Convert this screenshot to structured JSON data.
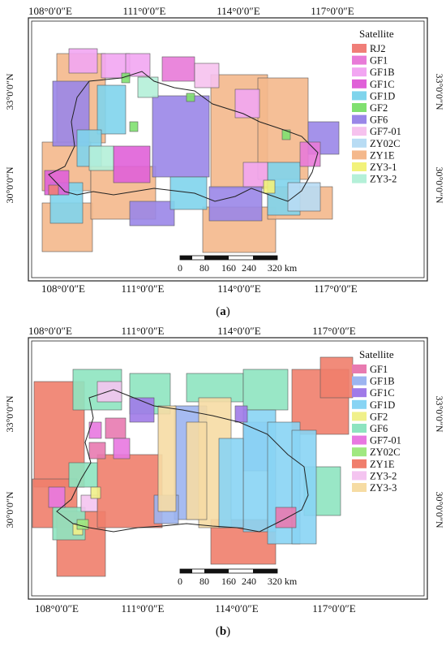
{
  "panels": [
    {
      "id": "a",
      "caption": "a",
      "legend_title": "Satellite",
      "legend": [
        {
          "name": "RJ2",
          "color": "#f07e78"
        },
        {
          "name": "GF1",
          "color": "#e87ad8"
        },
        {
          "name": "GF1B",
          "color": "#f2a6f2"
        },
        {
          "name": "GF1C",
          "color": "#e060d8"
        },
        {
          "name": "GF1D",
          "color": "#7fd4ec"
        },
        {
          "name": "GF2",
          "color": "#80e070"
        },
        {
          "name": "GF6",
          "color": "#9a86e8"
        },
        {
          "name": "GF7-01",
          "color": "#f6c2ee"
        },
        {
          "name": "ZY02C",
          "color": "#b8dcf4"
        },
        {
          "name": "ZY1E",
          "color": "#f4b88c"
        },
        {
          "name": "ZY3-1",
          "color": "#f2f27a"
        },
        {
          "name": "ZY3-2",
          "color": "#b4f0d8"
        }
      ],
      "x_ticks": [
        "108°0′0″E",
        "111°0′0″E",
        "114°0′0″E",
        "117°0′0″E"
      ],
      "y_ticks": [
        "33°0′0″N",
        "30°0′0″N"
      ],
      "scale_labels": [
        "0",
        "80",
        "160",
        "240",
        "320 km"
      ]
    },
    {
      "id": "b",
      "caption": "b",
      "legend_title": "Satellite",
      "legend": [
        {
          "name": "GF1",
          "color": "#e87ab0"
        },
        {
          "name": "GF1B",
          "color": "#9cb4f0"
        },
        {
          "name": "GF1C",
          "color": "#a07ae8"
        },
        {
          "name": "GF1D",
          "color": "#88d4f4"
        },
        {
          "name": "GF2",
          "color": "#f0f08a"
        },
        {
          "name": "GF6",
          "color": "#8ee4c0"
        },
        {
          "name": "GF7-01",
          "color": "#e878e0"
        },
        {
          "name": "ZY02C",
          "color": "#a0e880"
        },
        {
          "name": "ZY1E",
          "color": "#f07e6c"
        },
        {
          "name": "ZY3-2",
          "color": "#f4c4f0"
        },
        {
          "name": "ZY3-3",
          "color": "#f6dca4"
        }
      ],
      "x_ticks": [
        "108°0′0″E",
        "111°0′0″E",
        "114°0′0″E",
        "117°0′0″E"
      ],
      "y_ticks": [
        "33°0′0″N",
        "30°0′0″N"
      ],
      "scale_labels": [
        "0",
        "80",
        "160",
        "240",
        "320 km"
      ]
    }
  ]
}
